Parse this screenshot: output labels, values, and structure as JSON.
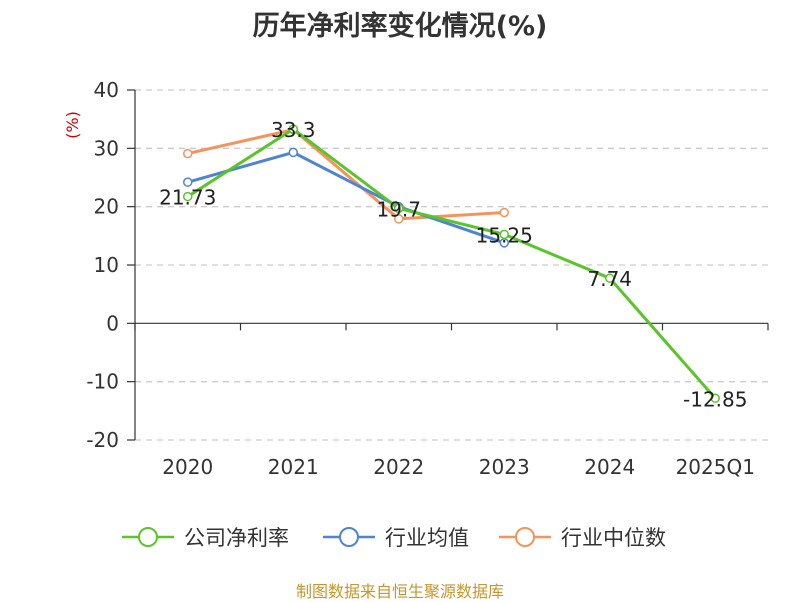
{
  "title": "历年净利率变化情况(%)",
  "source": "制图数据来自恒生聚源数据库",
  "chart_data": {
    "type": "line",
    "title": "历年净利率变化情况(%)",
    "ylabel": "(%)",
    "xlabel": "",
    "categories": [
      "2020",
      "2021",
      "2022",
      "2023",
      "2024",
      "2025Q1"
    ],
    "ylim": [
      -20,
      40
    ],
    "yticks": [
      40,
      30,
      20,
      10,
      0,
      -10,
      -20
    ],
    "grid": true,
    "legend_position": "bottom",
    "series": [
      {
        "name": "公司净利率",
        "color": "#5ac52a",
        "values": [
          21.73,
          33.3,
          19.7,
          15.25,
          7.74,
          -12.85
        ],
        "labels": [
          "21.73",
          "33.3",
          "19.7",
          "15.25",
          "7.74",
          "-12.85"
        ]
      },
      {
        "name": "行业均值",
        "color": "#4f83d8",
        "values": [
          24.2,
          29.3,
          20.0,
          13.8,
          null,
          null
        ]
      },
      {
        "name": "行业中位数",
        "color": "#f5935c",
        "values": [
          29.1,
          33.2,
          17.9,
          19.0,
          null,
          null
        ]
      }
    ]
  }
}
